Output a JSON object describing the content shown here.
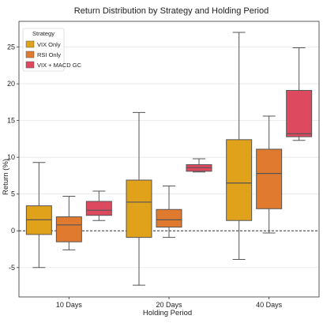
{
  "chart_data": {
    "type": "box",
    "title": "Return Distribution by Strategy and Holding Period",
    "xlabel": "Holding Period",
    "ylabel": "Return (%)",
    "categories": [
      "10 Days",
      "20 Days",
      "40 Days"
    ],
    "ylim": [
      -9,
      28.5
    ],
    "yticks": [
      -5,
      0,
      5,
      10,
      15,
      20,
      25
    ],
    "ytick_labels": [
      "-5",
      "0",
      "5",
      "10",
      "15",
      "20",
      "25"
    ],
    "grid": true,
    "reference_line": 0,
    "legend": {
      "title": "Strategy",
      "placement": "top-left"
    },
    "series": [
      {
        "name": "VIX Only",
        "color": "#e0a11b",
        "boxes": [
          {
            "whisker_low": -5.0,
            "q1": -0.5,
            "median": 1.5,
            "q3": 3.4,
            "whisker_high": 9.3
          },
          {
            "whisker_low": -7.4,
            "q1": -0.9,
            "median": 3.9,
            "q3": 6.9,
            "whisker_high": 16.1
          },
          {
            "whisker_low": -3.9,
            "q1": 1.4,
            "median": 6.5,
            "q3": 12.4,
            "whisker_high": 27.0
          }
        ]
      },
      {
        "name": "RSI Only",
        "color": "#e07a2e",
        "boxes": [
          {
            "whisker_low": -2.6,
            "q1": -1.5,
            "median": 0.8,
            "q3": 1.9,
            "whisker_high": 4.7
          },
          {
            "whisker_low": -0.9,
            "q1": 0.5,
            "median": 1.5,
            "q3": 2.9,
            "whisker_high": 6.1
          },
          {
            "whisker_low": -0.3,
            "q1": 3.0,
            "median": 7.8,
            "q3": 11.1,
            "whisker_high": 15.6
          }
        ]
      },
      {
        "name": "VIX + MACD GC",
        "color": "#dd4a60",
        "boxes": [
          {
            "whisker_low": 1.4,
            "q1": 2.1,
            "median": 2.8,
            "q3": 4.0,
            "whisker_high": 5.4
          },
          {
            "whisker_low": 8.0,
            "q1": 8.1,
            "median": 8.6,
            "q3": 9.0,
            "whisker_high": 9.8
          },
          {
            "whisker_low": 12.3,
            "q1": 12.8,
            "median": 13.2,
            "q3": 19.1,
            "whisker_high": 24.9
          }
        ]
      }
    ]
  }
}
